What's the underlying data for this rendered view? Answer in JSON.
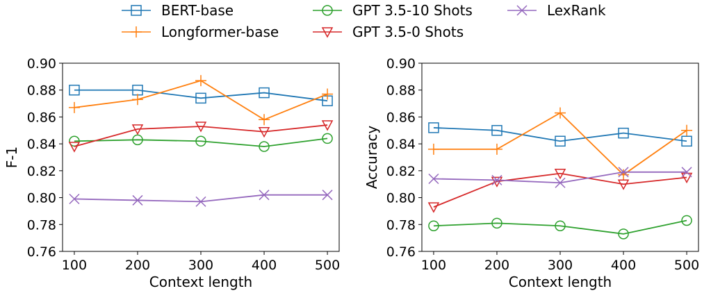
{
  "legend": {
    "position": "top-center",
    "entries": [
      {
        "label": "BERT-base",
        "color": "#1f77b4",
        "marker": "square"
      },
      {
        "label": "Longformer-base",
        "color": "#ff7f0e",
        "marker": "plus"
      },
      {
        "label": "GPT 3.5-10 Shots",
        "color": "#2ca02c",
        "marker": "circle"
      },
      {
        "label": "GPT 3.5-0 Shots",
        "color": "#d62728",
        "marker": "triangle-down"
      },
      {
        "label": "LexRank",
        "color": "#9467bd",
        "marker": "x"
      }
    ]
  },
  "chart_data": [
    {
      "type": "line",
      "xlabel": "Context length",
      "ylabel": "F-1",
      "x": [
        100,
        200,
        300,
        400,
        500
      ],
      "xticks": [
        "100",
        "200",
        "300",
        "400",
        "500"
      ],
      "ylim": [
        0.76,
        0.9
      ],
      "yticks": [
        "0.76",
        "0.78",
        "0.80",
        "0.82",
        "0.84",
        "0.86",
        "0.88",
        "0.90"
      ],
      "grid": false,
      "series": [
        {
          "name": "BERT-base",
          "values": [
            0.88,
            0.88,
            0.874,
            0.878,
            0.872
          ]
        },
        {
          "name": "Longformer-base",
          "values": [
            0.867,
            0.873,
            0.887,
            0.858,
            0.877
          ]
        },
        {
          "name": "GPT 3.5-10 Shots",
          "values": [
            0.842,
            0.843,
            0.842,
            0.838,
            0.844
          ]
        },
        {
          "name": "GPT 3.5-0 Shots",
          "values": [
            0.838,
            0.851,
            0.853,
            0.849,
            0.854
          ]
        },
        {
          "name": "LexRank",
          "values": [
            0.799,
            0.798,
            0.797,
            0.802,
            0.802
          ]
        }
      ]
    },
    {
      "type": "line",
      "xlabel": "Context length",
      "ylabel": "Accuracy",
      "x": [
        100,
        200,
        300,
        400,
        500
      ],
      "xticks": [
        "100",
        "200",
        "300",
        "400",
        "500"
      ],
      "ylim": [
        0.76,
        0.9
      ],
      "yticks": [
        "0.76",
        "0.78",
        "0.80",
        "0.82",
        "0.84",
        "0.86",
        "0.88",
        "0.90"
      ],
      "grid": false,
      "series": [
        {
          "name": "BERT-base",
          "values": [
            0.852,
            0.85,
            0.842,
            0.848,
            0.842
          ]
        },
        {
          "name": "Longformer-base",
          "values": [
            0.836,
            0.836,
            0.863,
            0.817,
            0.85
          ]
        },
        {
          "name": "GPT 3.5-10 Shots",
          "values": [
            0.779,
            0.781,
            0.779,
            0.773,
            0.783
          ]
        },
        {
          "name": "GPT 3.5-0 Shots",
          "values": [
            0.793,
            0.812,
            0.818,
            0.81,
            0.815
          ]
        },
        {
          "name": "LexRank",
          "values": [
            0.814,
            0.813,
            0.811,
            0.819,
            0.819
          ]
        }
      ]
    }
  ]
}
